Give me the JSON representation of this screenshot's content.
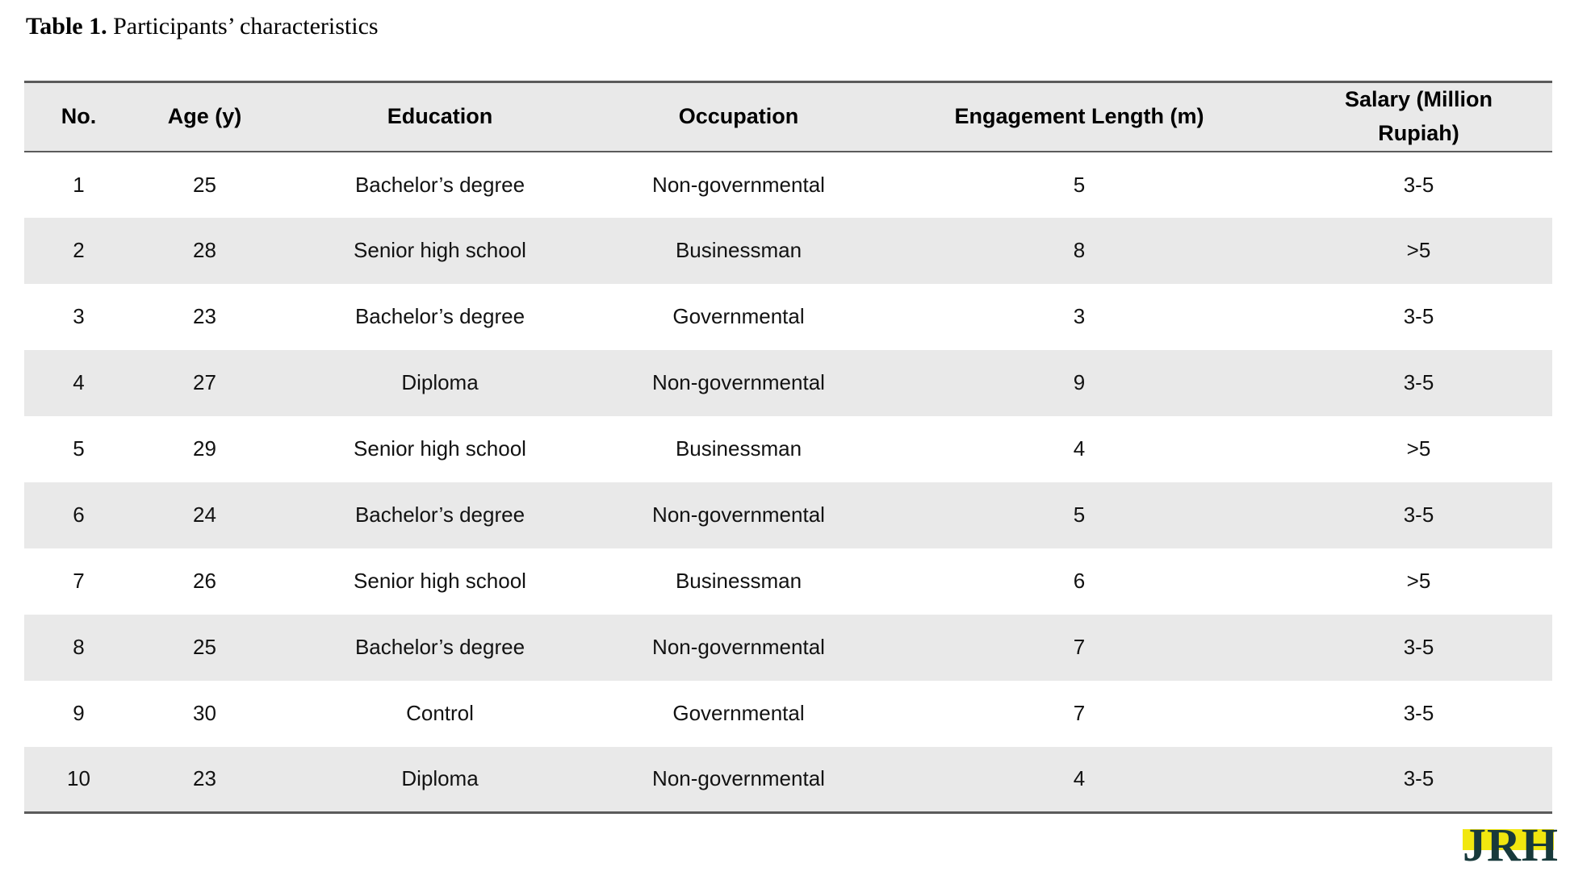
{
  "caption": {
    "prefix": "Table 1.",
    "text": " Participants’ characteristics"
  },
  "table": {
    "columns": [
      {
        "label": "No."
      },
      {
        "label": "Age (y)"
      },
      {
        "label": "Education"
      },
      {
        "label": "Occupation"
      },
      {
        "label": "Engagement Length (m)"
      },
      {
        "label": "Salary (Million Rupiah)"
      }
    ],
    "rows": [
      [
        "1",
        "25",
        "Bachelor’s degree",
        "Non-governmental",
        "5",
        "3-5"
      ],
      [
        "2",
        "28",
        "Senior high school",
        "Businessman",
        "8",
        ">5"
      ],
      [
        "3",
        "23",
        "Bachelor’s degree",
        "Governmental",
        "3",
        "3-5"
      ],
      [
        "4",
        "27",
        "Diploma",
        "Non-governmental",
        "9",
        "3-5"
      ],
      [
        "5",
        "29",
        "Senior high school",
        "Businessman",
        "4",
        ">5"
      ],
      [
        "6",
        "24",
        "Bachelor’s degree",
        "Non-governmental",
        "5",
        "3-5"
      ],
      [
        "7",
        "26",
        "Senior high school",
        "Businessman",
        "6",
        ">5"
      ],
      [
        "8",
        "25",
        "Bachelor’s degree",
        "Non-governmental",
        "7",
        "3-5"
      ],
      [
        "9",
        "30",
        "Control",
        "Governmental",
        "7",
        "3-5"
      ],
      [
        "10",
        "23",
        "Diploma",
        "Non-governmental",
        "4",
        "3-5"
      ]
    ],
    "style": {
      "band_color": "#e9e9e9",
      "border_color": "#5b5b5b",
      "text_color": "#121212"
    }
  },
  "chart_data": {
    "type": "table",
    "title": "Table 1. Participants’ characteristics",
    "columns": [
      "No.",
      "Age (y)",
      "Education",
      "Occupation",
      "Engagement Length (m)",
      "Salary (Million Rupiah)"
    ],
    "rows": [
      [
        "1",
        "25",
        "Bachelor’s degree",
        "Non-governmental",
        "5",
        "3-5"
      ],
      [
        "2",
        "28",
        "Senior high school",
        "Businessman",
        "8",
        ">5"
      ],
      [
        "3",
        "23",
        "Bachelor’s degree",
        "Governmental",
        "3",
        "3-5"
      ],
      [
        "4",
        "27",
        "Diploma",
        "Non-governmental",
        "9",
        "3-5"
      ],
      [
        "5",
        "29",
        "Senior high school",
        "Businessman",
        "4",
        ">5"
      ],
      [
        "6",
        "24",
        "Bachelor’s degree",
        "Non-governmental",
        "5",
        "3-5"
      ],
      [
        "7",
        "26",
        "Senior high school",
        "Businessman",
        "6",
        ">5"
      ],
      [
        "8",
        "25",
        "Bachelor’s degree",
        "Non-governmental",
        "7",
        "3-5"
      ],
      [
        "9",
        "30",
        "Control",
        "Governmental",
        "7",
        "3-5"
      ],
      [
        "10",
        "23",
        "Diploma",
        "Non-governmental",
        "4",
        "3-5"
      ]
    ]
  },
  "logo": {
    "text": "JRH",
    "band_color": "#f1e70f",
    "text_color": "#17393b"
  }
}
